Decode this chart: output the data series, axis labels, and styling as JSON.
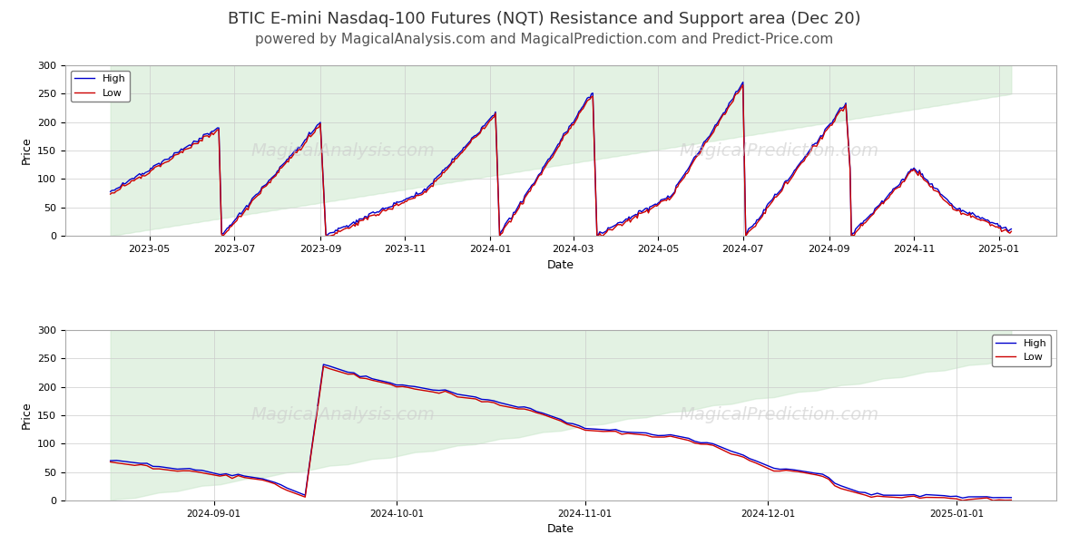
{
  "title": "BTIC E-mini Nasdaq-100 Futures (NQT) Resistance and Support area (Dec 20)",
  "subtitle": "powered by MagicalAnalysis.com and MagicalPrediction.com and Predict-Price.com",
  "title_fontsize": 13,
  "subtitle_fontsize": 11,
  "ylabel": "Price",
  "xlabel": "Date",
  "bg_color": "#ffffff",
  "plot_bg": "#ffffff",
  "grid_color": "#cccccc",
  "high_color": "#0000cc",
  "low_color": "#cc0000",
  "fill_color": "#c8e6c9",
  "fill_alpha": 0.5,
  "watermark_color": "#cccccc",
  "watermark_text1": "MagicalAnalysis.com",
  "watermark_text2": "MagicalPrediction.com",
  "ylim": [
    0,
    300
  ],
  "legend_high": "High",
  "legend_low": "Low"
}
